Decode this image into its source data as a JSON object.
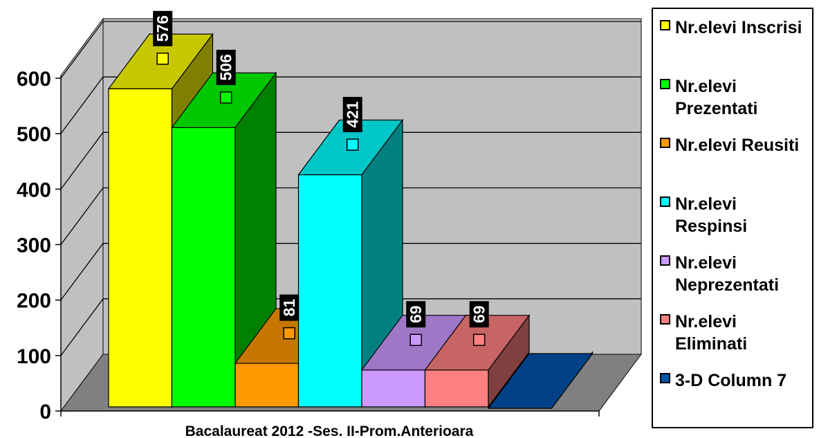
{
  "chart_data": {
    "type": "bar",
    "variant": "3d-column",
    "categories": [
      "Bacalaureat 2012 -Ses. II-Prom.Anterioara"
    ],
    "series": [
      {
        "name": "Nr.elevi Inscrisi",
        "values": [
          576
        ],
        "color": "#FFFF00",
        "label": "576"
      },
      {
        "name": "Nr.elevi Prezentati",
        "values": [
          506
        ],
        "color": "#00FF00",
        "label": "506"
      },
      {
        "name": "Nr.elevi Reusiti",
        "values": [
          81
        ],
        "color": "#FF9900",
        "label": "81"
      },
      {
        "name": "Nr.elevi Respinsi",
        "values": [
          421
        ],
        "color": "#00FFFF",
        "label": "421"
      },
      {
        "name": "Nr.elevi Neprezentati",
        "values": [
          69
        ],
        "color": "#CC99FF",
        "label": "69"
      },
      {
        "name": "Nr.elevi Eliminati",
        "values": [
          69
        ],
        "color": "#FF8080",
        "label": "69"
      },
      {
        "name": "3-D Column 7",
        "values": [
          0
        ],
        "color": "#0055AA",
        "label": ""
      }
    ],
    "y_ticks": [
      "0",
      "100",
      "200",
      "300",
      "400",
      "500",
      "600"
    ],
    "ylim": [
      0,
      600
    ],
    "grid": true,
    "legend_position": "right",
    "wall_color": "#C0C0C0",
    "floor_color": "#808080"
  }
}
